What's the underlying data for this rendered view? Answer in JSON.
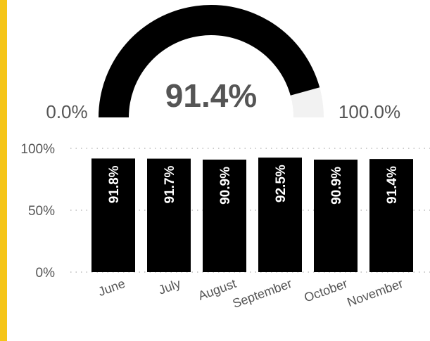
{
  "accent_color": "#f5c518",
  "chart_data": [
    {
      "type": "gauge",
      "value": 91.4,
      "value_label": "91.4%",
      "min": 0,
      "max": 100,
      "min_label": "0.0%",
      "max_label": "100.0%",
      "fill_color": "#000000",
      "track_color": "#f2f2f2"
    },
    {
      "type": "bar",
      "categories": [
        "June",
        "July",
        "August",
        "September",
        "October",
        "November"
      ],
      "values": [
        91.8,
        91.7,
        90.9,
        92.5,
        90.9,
        91.4
      ],
      "data_labels": [
        "91.8%",
        "91.7%",
        "90.9%",
        "92.5%",
        "90.9%",
        "91.4%"
      ],
      "ylim": [
        0,
        100
      ],
      "yticks": [
        "0%",
        "50%",
        "100%"
      ],
      "ytick_values": [
        0,
        50,
        100
      ],
      "grid": "dotted horizontal",
      "bar_color": "#000000",
      "label_color": "#ffffff"
    }
  ]
}
